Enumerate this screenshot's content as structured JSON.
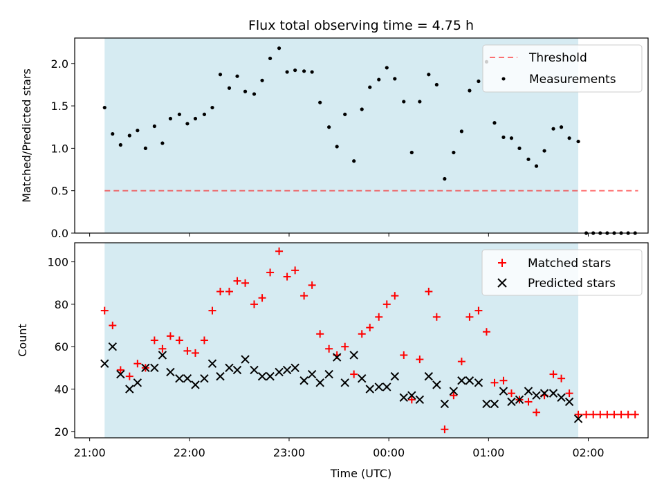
{
  "chart_data": {
    "title": "Flux total observing time = 4.75 h",
    "xlabel": "Time (UTC)",
    "x_ticks": [
      "21:00",
      "22:00",
      "23:00",
      "00:00",
      "01:00",
      "02:00"
    ],
    "x_tick_hours": [
      0,
      1,
      2,
      3,
      4,
      5
    ],
    "x_axis_origin": "21:00",
    "x_range_hours": [
      -0.15,
      5.6
    ],
    "shaded_span_hours": [
      0.15,
      4.9
    ],
    "colors": {
      "shade": "#add8e6",
      "threshold": "#ff0000",
      "matched": "#ff0000",
      "predicted": "#000000",
      "measurements": "#000000"
    },
    "top": {
      "type": "scatter",
      "ylabel": "Matched/Predicted stars",
      "ylim": [
        0,
        2.3
      ],
      "y_ticks": [
        "0.0",
        "0.5",
        "1.0",
        "1.5",
        "2.0"
      ],
      "threshold": {
        "name": "Threshold",
        "value": 0.5,
        "x_range_hours": [
          0.15,
          5.5
        ]
      },
      "series_name": "Measurements",
      "legend_position": "top-right",
      "points": [
        [
          0.15,
          1.48
        ],
        [
          0.23,
          1.17
        ],
        [
          0.31,
          1.04
        ],
        [
          0.4,
          1.15
        ],
        [
          0.48,
          1.21
        ],
        [
          0.56,
          1.0
        ],
        [
          0.65,
          1.26
        ],
        [
          0.73,
          1.06
        ],
        [
          0.81,
          1.35
        ],
        [
          0.9,
          1.4
        ],
        [
          0.98,
          1.29
        ],
        [
          1.06,
          1.35
        ],
        [
          1.15,
          1.4
        ],
        [
          1.23,
          1.48
        ],
        [
          1.31,
          1.87
        ],
        [
          1.4,
          1.71
        ],
        [
          1.48,
          1.85
        ],
        [
          1.56,
          1.67
        ],
        [
          1.65,
          1.64
        ],
        [
          1.73,
          1.8
        ],
        [
          1.81,
          2.06
        ],
        [
          1.9,
          2.18
        ],
        [
          1.98,
          1.9
        ],
        [
          2.06,
          1.92
        ],
        [
          2.15,
          1.91
        ],
        [
          2.23,
          1.9
        ],
        [
          2.31,
          1.54
        ],
        [
          2.4,
          1.25
        ],
        [
          2.48,
          1.02
        ],
        [
          2.56,
          1.4
        ],
        [
          2.65,
          0.85
        ],
        [
          2.73,
          1.46
        ],
        [
          2.81,
          1.72
        ],
        [
          2.9,
          1.81
        ],
        [
          2.98,
          1.95
        ],
        [
          3.06,
          1.82
        ],
        [
          3.15,
          1.55
        ],
        [
          3.23,
          0.95
        ],
        [
          3.31,
          1.55
        ],
        [
          3.4,
          1.87
        ],
        [
          3.48,
          1.75
        ],
        [
          3.56,
          0.64
        ],
        [
          3.65,
          0.95
        ],
        [
          3.73,
          1.2
        ],
        [
          3.81,
          1.68
        ],
        [
          3.9,
          1.79
        ],
        [
          3.98,
          2.02
        ],
        [
          4.06,
          1.3
        ],
        [
          4.15,
          1.13
        ],
        [
          4.23,
          1.12
        ],
        [
          4.31,
          1.0
        ],
        [
          4.4,
          0.87
        ],
        [
          4.48,
          0.79
        ],
        [
          4.56,
          0.97
        ],
        [
          4.65,
          1.23
        ],
        [
          4.73,
          1.25
        ],
        [
          4.81,
          1.12
        ],
        [
          4.9,
          1.08
        ],
        [
          4.98,
          0.0
        ],
        [
          5.05,
          0.0
        ],
        [
          5.12,
          0.0
        ],
        [
          5.19,
          0.0
        ],
        [
          5.26,
          0.0
        ],
        [
          5.33,
          0.0
        ],
        [
          5.4,
          0.0
        ],
        [
          5.47,
          0.0
        ]
      ]
    },
    "bottom": {
      "type": "scatter",
      "ylabel": "Count",
      "ylim": [
        17,
        109
      ],
      "y_ticks": [
        "20",
        "40",
        "60",
        "80",
        "100"
      ],
      "y_tick_values": [
        20,
        40,
        60,
        80,
        100
      ],
      "legend_position": "top-right",
      "series": [
        {
          "name": "Matched stars",
          "marker": "plus",
          "points": [
            [
              0.15,
              77
            ],
            [
              0.23,
              70
            ],
            [
              0.31,
              49
            ],
            [
              0.4,
              46
            ],
            [
              0.48,
              52
            ],
            [
              0.56,
              50
            ],
            [
              0.65,
              63
            ],
            [
              0.73,
              59
            ],
            [
              0.81,
              65
            ],
            [
              0.9,
              63
            ],
            [
              0.98,
              58
            ],
            [
              1.06,
              57
            ],
            [
              1.15,
              63
            ],
            [
              1.23,
              77
            ],
            [
              1.31,
              86
            ],
            [
              1.4,
              86
            ],
            [
              1.48,
              91
            ],
            [
              1.56,
              90
            ],
            [
              1.65,
              80
            ],
            [
              1.73,
              83
            ],
            [
              1.81,
              95
            ],
            [
              1.9,
              105
            ],
            [
              1.98,
              93
            ],
            [
              2.06,
              96
            ],
            [
              2.15,
              84
            ],
            [
              2.23,
              89
            ],
            [
              2.31,
              66
            ],
            [
              2.4,
              59
            ],
            [
              2.48,
              56
            ],
            [
              2.56,
              60
            ],
            [
              2.65,
              47
            ],
            [
              2.73,
              66
            ],
            [
              2.81,
              69
            ],
            [
              2.9,
              74
            ],
            [
              2.98,
              80
            ],
            [
              3.06,
              84
            ],
            [
              3.15,
              56
            ],
            [
              3.23,
              35
            ],
            [
              3.31,
              54
            ],
            [
              3.4,
              86
            ],
            [
              3.48,
              74
            ],
            [
              3.56,
              21
            ],
            [
              3.65,
              37
            ],
            [
              3.73,
              53
            ],
            [
              3.81,
              74
            ],
            [
              3.9,
              77
            ],
            [
              3.98,
              67
            ],
            [
              4.06,
              43
            ],
            [
              4.15,
              44
            ],
            [
              4.23,
              38
            ],
            [
              4.31,
              35
            ],
            [
              4.4,
              34
            ],
            [
              4.48,
              29
            ],
            [
              4.56,
              37
            ],
            [
              4.65,
              47
            ],
            [
              4.73,
              45
            ],
            [
              4.81,
              38
            ],
            [
              4.9,
              28
            ],
            [
              4.98,
              28
            ],
            [
              5.05,
              28
            ],
            [
              5.12,
              28
            ],
            [
              5.19,
              28
            ],
            [
              5.26,
              28
            ],
            [
              5.33,
              28
            ],
            [
              5.4,
              28
            ],
            [
              5.47,
              28
            ]
          ]
        },
        {
          "name": "Predicted stars",
          "marker": "x",
          "points": [
            [
              0.15,
              52
            ],
            [
              0.23,
              60
            ],
            [
              0.31,
              47
            ],
            [
              0.4,
              40
            ],
            [
              0.48,
              43
            ],
            [
              0.56,
              50
            ],
            [
              0.65,
              50
            ],
            [
              0.73,
              56
            ],
            [
              0.81,
              48
            ],
            [
              0.9,
              45
            ],
            [
              0.98,
              45
            ],
            [
              1.06,
              42
            ],
            [
              1.15,
              45
            ],
            [
              1.23,
              52
            ],
            [
              1.31,
              46
            ],
            [
              1.4,
              50
            ],
            [
              1.48,
              49
            ],
            [
              1.56,
              54
            ],
            [
              1.65,
              49
            ],
            [
              1.73,
              46
            ],
            [
              1.81,
              46
            ],
            [
              1.9,
              48
            ],
            [
              1.98,
              49
            ],
            [
              2.06,
              50
            ],
            [
              2.15,
              44
            ],
            [
              2.23,
              47
            ],
            [
              2.31,
              43
            ],
            [
              2.4,
              47
            ],
            [
              2.48,
              55
            ],
            [
              2.56,
              43
            ],
            [
              2.65,
              56
            ],
            [
              2.73,
              45
            ],
            [
              2.81,
              40
            ],
            [
              2.9,
              41
            ],
            [
              2.98,
              41
            ],
            [
              3.06,
              46
            ],
            [
              3.15,
              36
            ],
            [
              3.23,
              37
            ],
            [
              3.31,
              35
            ],
            [
              3.4,
              46
            ],
            [
              3.48,
              42
            ],
            [
              3.56,
              33
            ],
            [
              3.65,
              39
            ],
            [
              3.73,
              44
            ],
            [
              3.81,
              44
            ],
            [
              3.9,
              43
            ],
            [
              3.98,
              33
            ],
            [
              4.06,
              33
            ],
            [
              4.15,
              39
            ],
            [
              4.23,
              34
            ],
            [
              4.31,
              35
            ],
            [
              4.4,
              39
            ],
            [
              4.48,
              37
            ],
            [
              4.56,
              38
            ],
            [
              4.65,
              38
            ],
            [
              4.73,
              36
            ],
            [
              4.81,
              34
            ],
            [
              4.9,
              26
            ]
          ]
        }
      ]
    }
  }
}
